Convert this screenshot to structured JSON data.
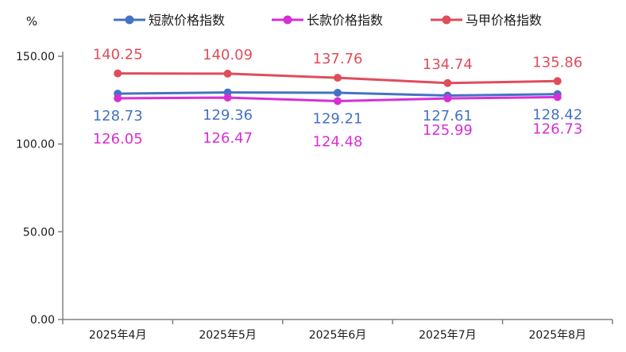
{
  "chart_data": {
    "type": "line",
    "title": "",
    "xlabel": "",
    "ylabel": "%",
    "ylim": [
      0,
      150
    ],
    "yticks": [
      "0.00",
      "50.00",
      "100.00",
      "150.00"
    ],
    "ytick_values": [
      0,
      50,
      100,
      150
    ],
    "categories": [
      "2025年4月",
      "2025年5月",
      "2025年6月",
      "2025年7月",
      "2025年8月"
    ],
    "legend_position": "top",
    "grid": false,
    "series": [
      {
        "name": "短款价格指数",
        "color": "#4472C4",
        "values": [
          128.73,
          129.36,
          129.21,
          127.61,
          128.42
        ],
        "labels": [
          "128.73",
          "129.36",
          "129.21",
          "127.61",
          "128.42"
        ],
        "label_position": "below"
      },
      {
        "name": "长款价格指数",
        "color": "#D72FD6",
        "values": [
          126.05,
          126.47,
          124.48,
          125.99,
          126.73
        ],
        "labels": [
          "126.05",
          "126.47",
          "124.48",
          "125.99",
          "126.73"
        ],
        "label_position": "below"
      },
      {
        "name": "马甲价格指数",
        "color": "#DF4D5B",
        "values": [
          140.25,
          140.09,
          137.76,
          134.74,
          135.86
        ],
        "labels": [
          "140.25",
          "140.09",
          "137.76",
          "134.74",
          "135.86"
        ],
        "label_position": "above"
      }
    ]
  }
}
